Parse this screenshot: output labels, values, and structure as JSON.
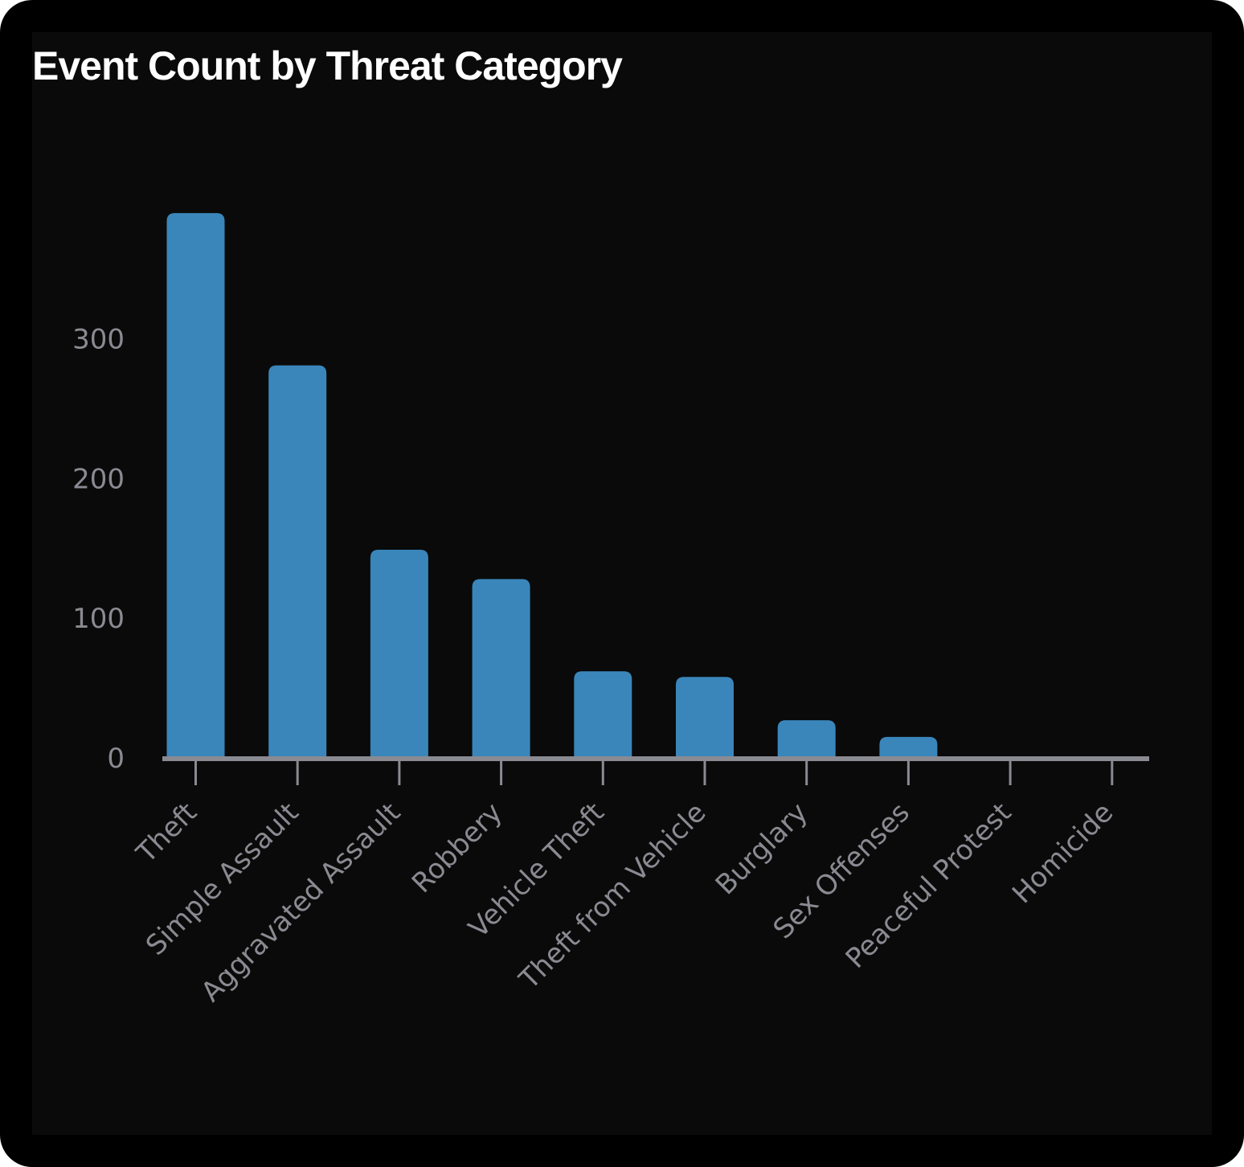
{
  "chart_data": {
    "type": "bar",
    "title": "Event Count by Threat Category",
    "xlabel": "",
    "ylabel": "",
    "categories": [
      "Theft",
      "Simple Assault",
      "Aggravated Assault",
      "Robbery",
      "Vehicle Theft",
      "Theft from Vehicle",
      "Burglary",
      "Sex Offenses",
      "Peaceful Protest",
      "Homicide"
    ],
    "values": [
      390,
      281,
      149,
      128,
      62,
      58,
      27,
      15,
      1,
      1
    ],
    "yticks": [
      0,
      100,
      200,
      300
    ],
    "ylim": [
      0,
      400
    ],
    "grid": false,
    "legend": "none",
    "colors": {
      "bar": "#3a86bb",
      "axis": "#8a8a92",
      "label": "#8a8a92",
      "title": "#ffffff",
      "background": "#0a0a0a",
      "frame": "#000000"
    }
  }
}
